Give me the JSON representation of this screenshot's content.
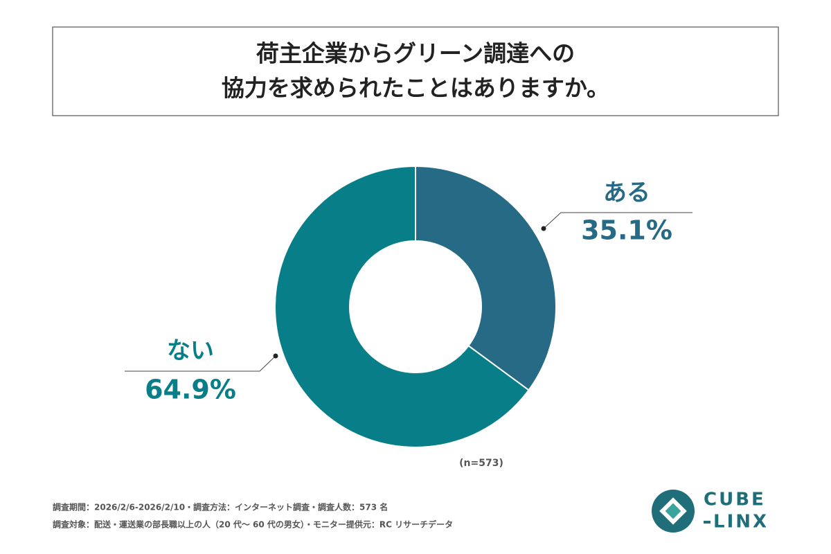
{
  "chart_data": {
    "type": "pie",
    "donut": true,
    "title_lines": [
      "荷主企業からグリーン調達への",
      "協力を求められたことはありますか。"
    ],
    "categories": [
      "ある",
      "ない"
    ],
    "values": [
      35.1,
      64.9
    ],
    "value_labels": [
      "35.1%",
      "64.9%"
    ],
    "colors": [
      "#266a85",
      "#087f88"
    ],
    "note": "(n=573)",
    "footer_lines": [
      "調査期間：2026/2/6-2026/2/10・調査方法：インターネット調査・調査人数：573 名",
      "調査対象：配送・運送業の部長職以上の人（20 代～ 60 代の男女）・モニター提供元：RC リサーチデータ"
    ],
    "logo": {
      "top": "CUBE",
      "bottom": "LINX"
    }
  }
}
